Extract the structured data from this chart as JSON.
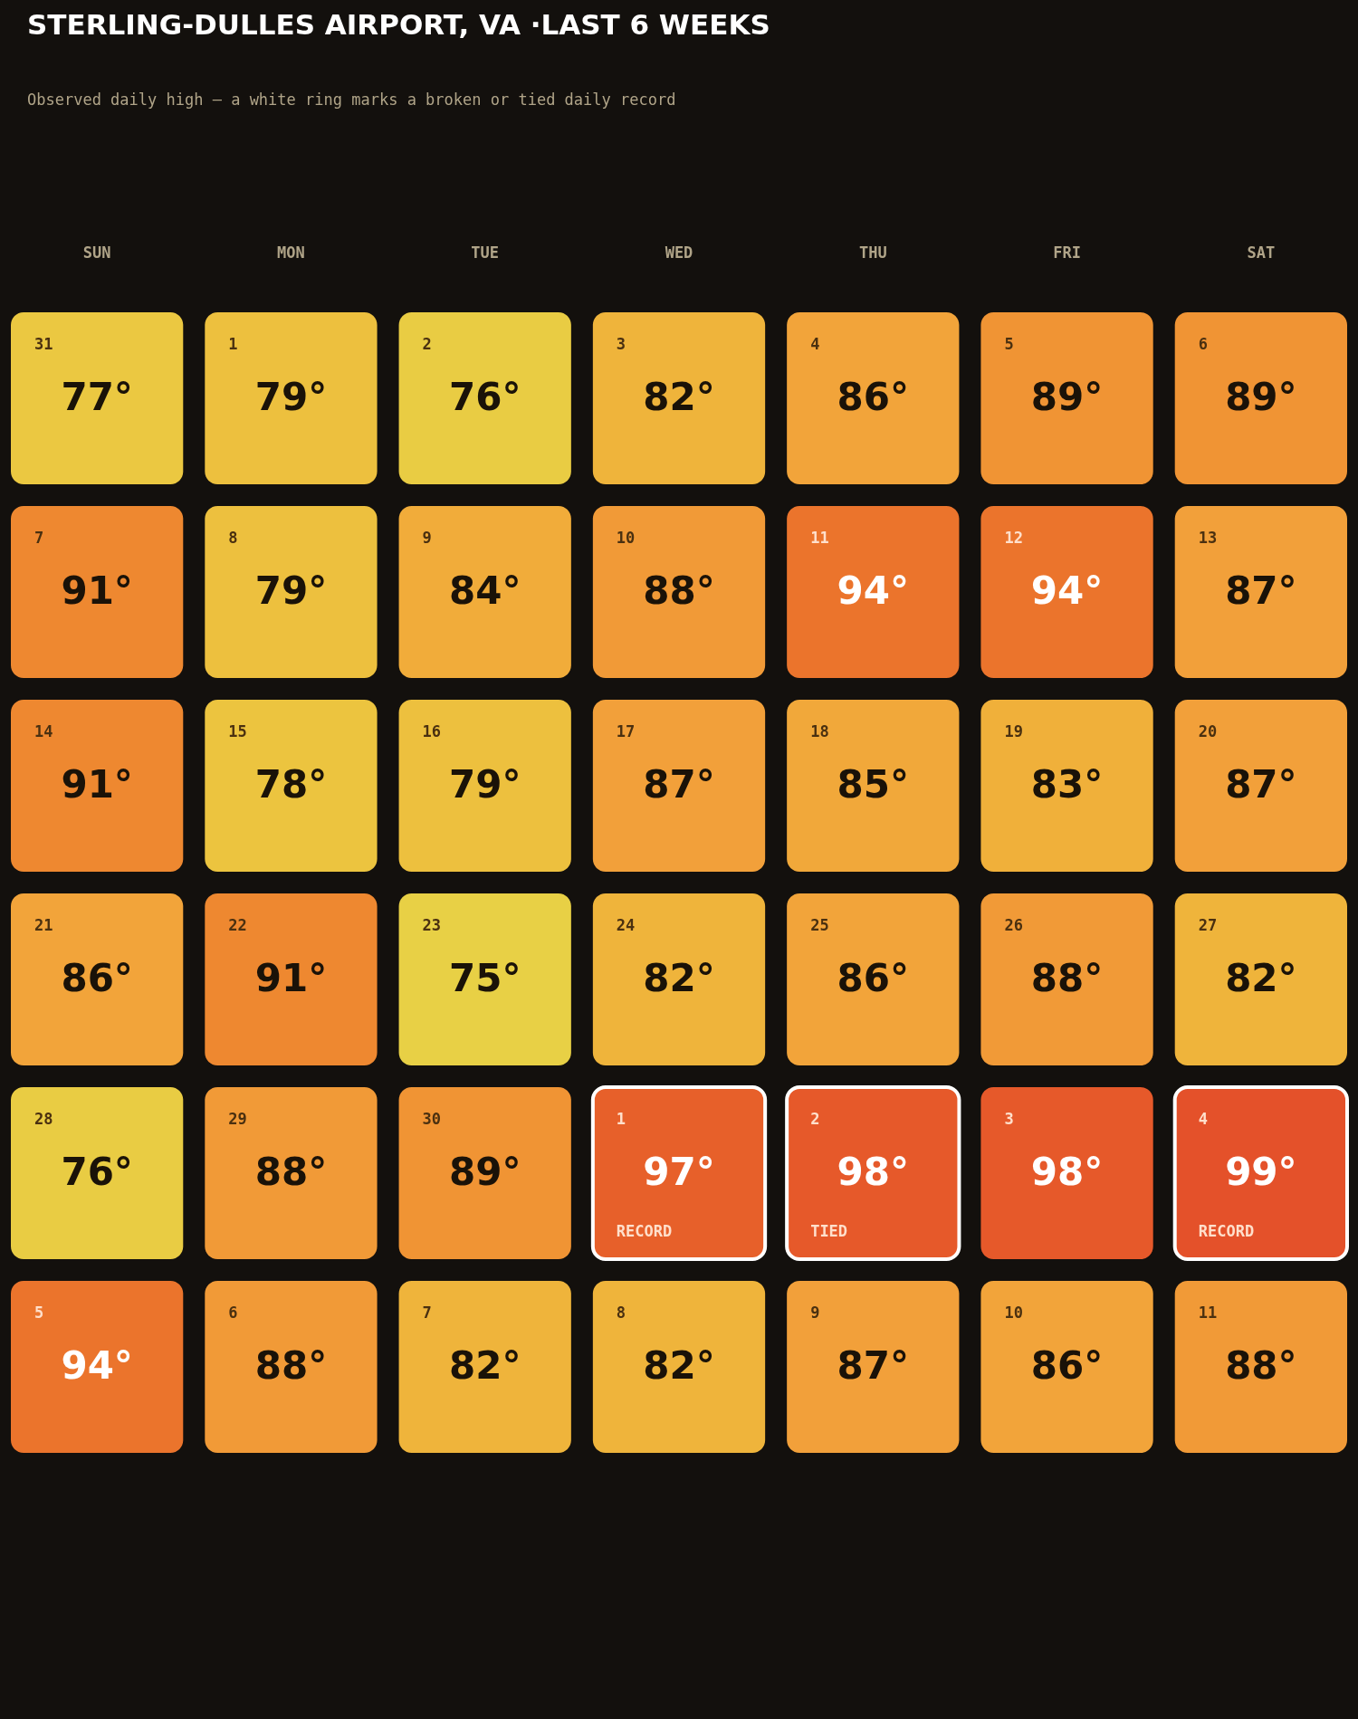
{
  "chart_data": {
    "type": "heatmap",
    "title": "STERLING-DULLES AIRPORT, VA ·LAST 6 WEEKS",
    "subtitle": "Observed daily high — a white ring marks a broken or tied daily record",
    "categories": [
      "SUN",
      "MON",
      "TUE",
      "WED",
      "THU",
      "FRI",
      "SAT"
    ],
    "y_categories": [
      null,
      null,
      null,
      null,
      null,
      null
    ],
    "tick_labels": "x",
    "cells": [
      [
        77,
        79,
        76,
        82,
        86,
        89,
        89
      ],
      [
        91,
        79,
        84,
        88,
        94,
        94,
        87
      ],
      [
        91,
        78,
        79,
        87,
        85,
        83,
        87
      ],
      [
        86,
        91,
        75,
        82,
        86,
        88,
        82
      ],
      [
        76,
        88,
        89,
        97,
        98,
        98,
        99
      ],
      [
        94,
        88,
        82,
        82,
        87,
        86,
        88
      ]
    ],
    "cell_labels": [
      [
        "77°",
        "79°",
        "76°",
        "82°",
        "86°",
        "89°",
        "89°"
      ],
      [
        "91°",
        "79°",
        "84°",
        "88°",
        "94°",
        "94°",
        "87°"
      ],
      [
        "91°",
        "78°",
        "79°",
        "87°",
        "85°",
        "83°",
        "87°"
      ],
      [
        "86°",
        "91°",
        "75°",
        "82°",
        "86°",
        "88°",
        "82°"
      ],
      [
        "76°",
        "88°",
        "89°",
        "97°",
        "98°",
        "98°",
        "99°"
      ],
      [
        "94°",
        "88°",
        "82°",
        "82°",
        "87°",
        "86°",
        "88°"
      ]
    ],
    "annotations": [
      "31",
      "1",
      "2",
      "3",
      "4",
      "5",
      "6",
      "7",
      "8",
      "9",
      "10",
      "11",
      "12",
      "13",
      "14",
      "15",
      "16",
      "17",
      "18",
      "19",
      "20",
      "21",
      "22",
      "23",
      "24",
      "25",
      "26",
      "27",
      "28",
      "29",
      "30",
      "1\nRECORD",
      "2\nTIED",
      "3",
      "4\nRECORD",
      "5",
      "6",
      "7",
      "8",
      "9",
      "10",
      "11"
    ]
  }
}
